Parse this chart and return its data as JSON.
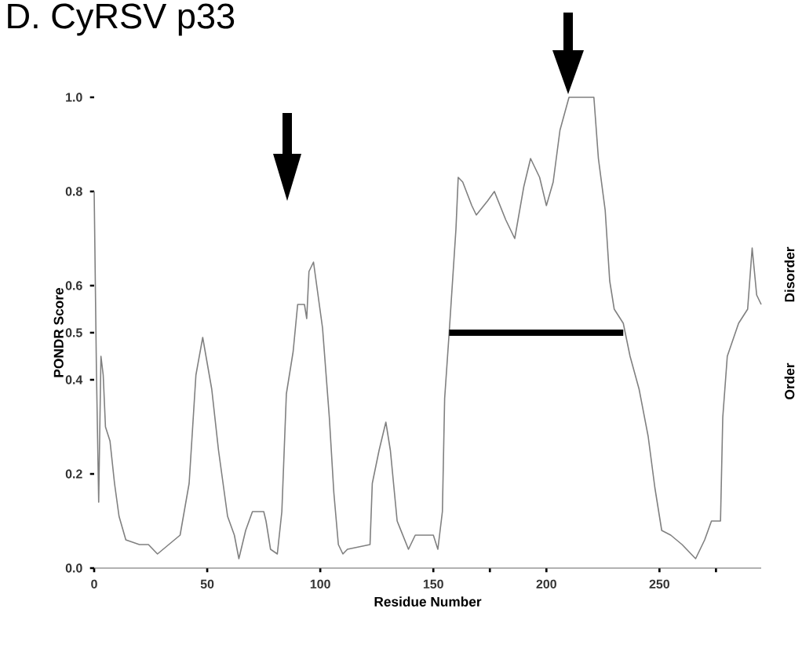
{
  "chart_data": {
    "type": "line",
    "title": "D. CyRSV p33",
    "xlabel": "Residue Number",
    "ylabel": "PONDR Score",
    "xlim": [
      0,
      295
    ],
    "ylim": [
      0,
      1.0
    ],
    "xticks": [
      0,
      50,
      100,
      150,
      200,
      250,
      {
        "value": 175,
        "label": null
      },
      {
        "value": 275,
        "label": null
      }
    ],
    "yticks": [
      {
        "value": 0,
        "label": "0.0"
      },
      {
        "value": 0.2,
        "label": "0.2"
      },
      {
        "value": 0.4,
        "label": "0.4"
      },
      {
        "value": 0.5,
        "label": "0.5"
      },
      {
        "value": 0.6,
        "label": "0.6"
      },
      {
        "value": 0.8,
        "label": "0.8"
      },
      {
        "value": 1.0,
        "label": "1.0"
      }
    ],
    "grid": false,
    "marker": "none",
    "line_style": "solid",
    "annotations": [
      "Disorder",
      "Order"
    ],
    "series": [
      {
        "color": "#808080",
        "x": [
          0,
          1,
          2,
          2.5,
          3,
          4,
          5,
          7,
          9,
          11,
          14,
          20,
          24,
          28,
          33,
          38,
          42,
          45,
          48,
          52,
          55,
          59,
          62,
          64,
          67,
          70,
          75,
          76,
          78,
          81,
          83,
          85,
          88,
          90,
          93,
          94,
          95,
          97,
          99,
          101,
          104,
          106,
          108,
          110,
          112,
          122,
          123,
          126,
          129,
          131,
          134,
          139,
          142,
          150,
          152,
          154,
          155,
          157,
          160,
          161,
          163,
          167,
          169,
          174,
          177,
          182,
          186,
          190,
          193,
          197,
          200,
          203,
          206,
          210,
          221,
          223,
          226,
          228,
          230,
          234,
          237,
          241,
          245,
          248,
          251,
          255,
          260,
          266,
          270,
          273,
          277,
          278,
          280,
          285,
          289,
          291,
          293,
          295
        ],
        "values": [
          0.8,
          0.42,
          0.14,
          0.3,
          0.45,
          0.41,
          0.3,
          0.27,
          0.18,
          0.11,
          0.06,
          0.05,
          0.05,
          0.03,
          0.05,
          0.07,
          0.18,
          0.41,
          0.49,
          0.38,
          0.25,
          0.11,
          0.07,
          0.02,
          0.08,
          0.12,
          0.12,
          0.1,
          0.04,
          0.03,
          0.12,
          0.37,
          0.46,
          0.56,
          0.56,
          0.53,
          0.63,
          0.65,
          0.58,
          0.51,
          0.32,
          0.16,
          0.05,
          0.03,
          0.04,
          0.05,
          0.18,
          0.25,
          0.31,
          0.25,
          0.1,
          0.04,
          0.07,
          0.07,
          0.04,
          0.12,
          0.36,
          0.5,
          0.72,
          0.83,
          0.82,
          0.77,
          0.75,
          0.78,
          0.8,
          0.74,
          0.7,
          0.81,
          0.87,
          0.83,
          0.77,
          0.82,
          0.93,
          1.0,
          1.0,
          0.87,
          0.76,
          0.61,
          0.55,
          0.52,
          0.45,
          0.38,
          0.28,
          0.17,
          0.08,
          0.07,
          0.05,
          0.02,
          0.06,
          0.1,
          0.1,
          0.32,
          0.45,
          0.52,
          0.55,
          0.68,
          0.58,
          0.56
        ]
      },
      {
        "type": "line",
        "color": "#000000",
        "x": [
          157,
          234
        ],
        "values": [
          0.5,
          0.5
        ]
      }
    ]
  }
}
